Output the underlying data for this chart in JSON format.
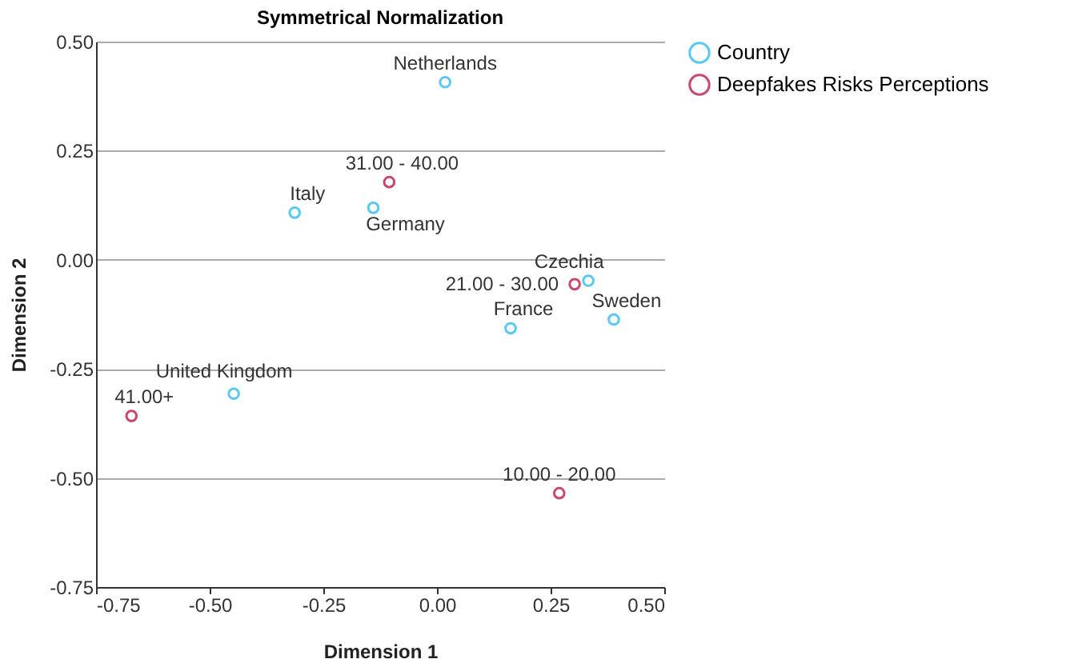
{
  "chart_data": {
    "type": "scatter",
    "title": "Symmetrical Normalization",
    "xlabel": "Dimension 1",
    "ylabel": "Dimension 2",
    "series": [
      {
        "name": "Country",
        "color": "#5ac8f5",
        "x": [
          0.018,
          -0.313,
          -0.14,
          0.333,
          0.389,
          0.162,
          -0.447
        ],
        "values": [
          0.407,
          0.108,
          0.119,
          -0.048,
          -0.137,
          -0.157,
          -0.307
        ]
      },
      {
        "name": "Deepfakes Risks Perceptions",
        "color": "#c8486e",
        "x": [
          -0.105,
          0.303,
          -0.672,
          0.269
        ],
        "values": [
          0.178,
          -0.056,
          -0.358,
          -0.535
        ]
      }
    ],
    "annotations": [
      {
        "text": "Netherlands",
        "x": 0.018,
        "y": 0.407
      },
      {
        "text": "Italy",
        "x": -0.313,
        "y": 0.108
      },
      {
        "text": "Germany",
        "x": -0.14,
        "y": 0.119
      },
      {
        "text": "Czechia",
        "x": 0.333,
        "y": -0.048
      },
      {
        "text": "Sweden",
        "x": 0.389,
        "y": -0.137
      },
      {
        "text": "France",
        "x": 0.162,
        "y": -0.157
      },
      {
        "text": "United Kingdom",
        "x": -0.447,
        "y": -0.307
      },
      {
        "text": "31.00 - 40.00",
        "x": -0.105,
        "y": 0.178
      },
      {
        "text": "21.00 - 30.00",
        "x": 0.303,
        "y": -0.056
      },
      {
        "text": "41.00+",
        "x": -0.672,
        "y": -0.358
      },
      {
        "text": "10.00 - 20.00",
        "x": 0.269,
        "y": -0.535
      }
    ],
    "xlim": [
      -0.75,
      0.5
    ],
    "xticks": [
      {
        "value": -0.75,
        "label": "-0.75"
      },
      {
        "value": -0.5,
        "label": "-0.50"
      },
      {
        "value": -0.25,
        "label": "-0.25"
      },
      {
        "value": 0,
        "label": "0.00"
      },
      {
        "value": 0.25,
        "label": "0.25"
      },
      {
        "value": 0.5,
        "label": "0.50"
      }
    ],
    "ylim": [
      -0.75,
      0.5
    ],
    "yticks": [
      {
        "value": -0.75,
        "label": "-0.75"
      },
      {
        "value": -0.5,
        "label": "-0.50"
      },
      {
        "value": -0.25,
        "label": "-0.25"
      },
      {
        "value": 0,
        "label": "0.00"
      },
      {
        "value": 0.25,
        "label": "0.25"
      },
      {
        "value": 0.5,
        "label": "0.50"
      }
    ],
    "grid": "y",
    "legend": "top right",
    "marker": "circle"
  }
}
